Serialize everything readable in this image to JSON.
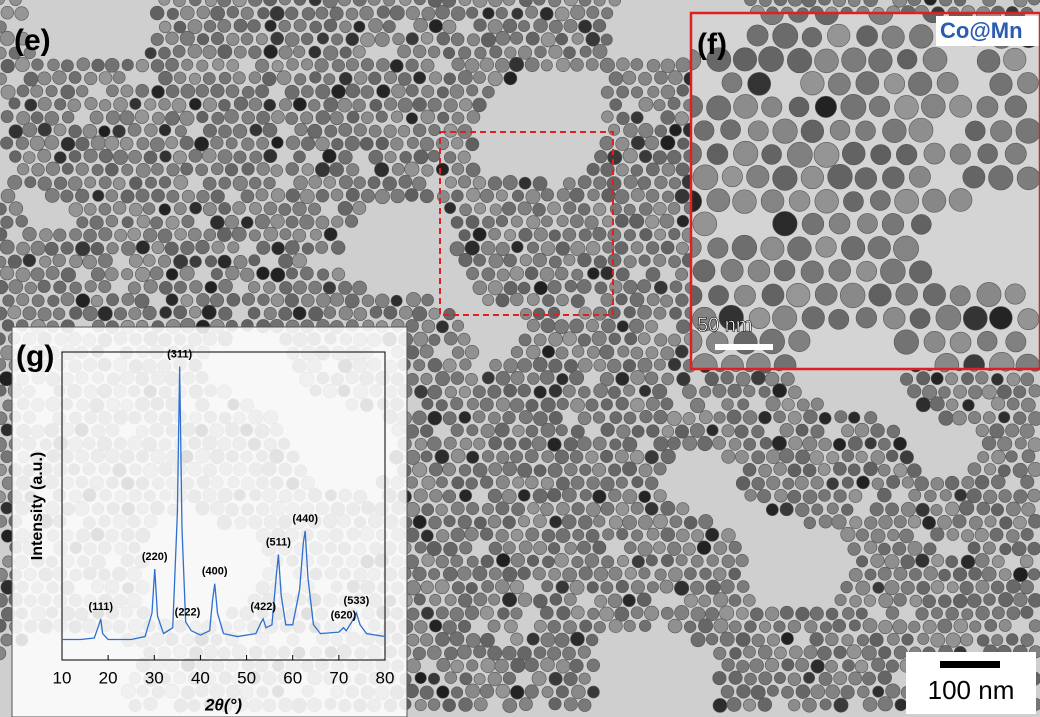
{
  "panels": {
    "e": "(e)",
    "f": "(f)",
    "g": "(g)",
    "f_caption": "Co@Mn",
    "f_scale": "50 nm",
    "e_scale": "100 nm"
  },
  "chart_data": {
    "type": "line",
    "xlabel": "2θ(°)",
    "ylabel": "Intensity (a.u.)",
    "x": [
      10,
      14,
      17,
      18,
      18.4,
      18.8,
      20,
      25,
      28,
      29.5,
      30.1,
      30.7,
      32,
      34,
      35,
      35.5,
      36,
      36.8,
      37.2,
      38,
      40,
      42,
      42.6,
      43.1,
      43.7,
      45,
      48,
      52,
      53.2,
      53.6,
      54.2,
      55.5,
      56.4,
      56.9,
      57.5,
      58.5,
      60,
      61.5,
      62.3,
      62.7,
      63.3,
      64.5,
      66,
      70,
      71,
      71.6,
      72.8,
      73.8,
      74.6,
      76,
      80
    ],
    "series": [
      {
        "color": "#2f6fd0",
        "values": [
          7,
          7,
          7.5,
          12,
          14,
          9,
          7,
          7,
          8,
          16,
          31,
          15,
          9,
          11,
          50,
          100,
          45,
          13,
          12,
          10,
          8.5,
          10,
          20,
          26,
          16,
          9,
          8,
          9,
          13,
          14,
          11,
          12,
          28,
          36,
          22,
          12,
          12,
          24,
          40,
          44,
          28,
          12,
          9,
          9.5,
          11,
          10,
          13,
          16,
          12,
          9,
          8
        ]
      }
    ],
    "annotations": [
      {
        "text": "(111)",
        "x": 18.4,
        "y": 14
      },
      {
        "text": "(220)",
        "x": 30.1,
        "y": 31
      },
      {
        "text": "(311)",
        "x": 35.5,
        "y": 100
      },
      {
        "text": "(222)",
        "x": 37.2,
        "y": 12
      },
      {
        "text": "(400)",
        "x": 43.1,
        "y": 26
      },
      {
        "text": "(422)",
        "x": 53.6,
        "y": 14
      },
      {
        "text": "(511)",
        "x": 56.9,
        "y": 36
      },
      {
        "text": "(440)",
        "x": 62.7,
        "y": 44
      },
      {
        "text": "(620)",
        "x": 71,
        "y": 11
      },
      {
        "text": "(533)",
        "x": 73.8,
        "y": 16
      }
    ],
    "xlim": [
      10,
      80
    ],
    "xticks": [
      10,
      20,
      30,
      40,
      50,
      60,
      70,
      80
    ],
    "ylim": [
      0,
      105
    ]
  }
}
